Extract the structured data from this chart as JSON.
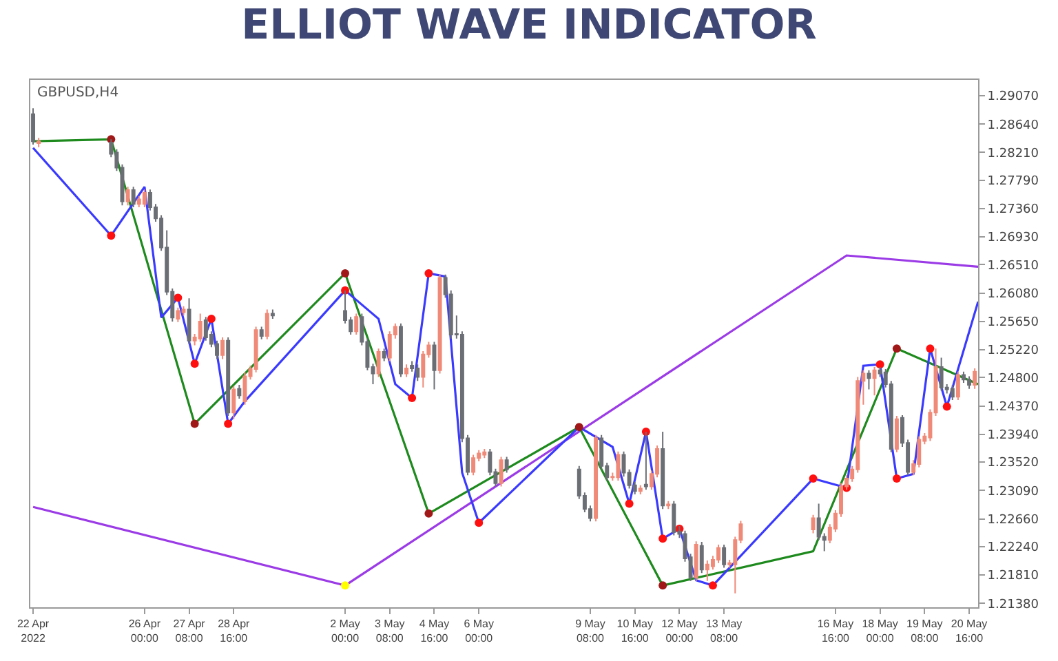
{
  "chart_data": {
    "type": "candlestick",
    "title": "ELLIOT WAVE INDICATOR",
    "annotations": [
      "GBPUSD,H4"
    ],
    "x": [
      "2022-04-22T16:00",
      "2022-04-22T20:00",
      "2022-04-25T00:00",
      "2022-04-25T04:00",
      "2022-04-25T08:00",
      "2022-04-25T12:00",
      "2022-04-25T16:00",
      "2022-04-25T20:00",
      "2022-04-26T00:00",
      "2022-04-26T04:00",
      "2022-04-26T08:00",
      "2022-04-26T12:00",
      "2022-04-26T16:00",
      "2022-04-26T20:00",
      "2022-04-27T00:00",
      "2022-04-27T04:00",
      "2022-04-27T08:00",
      "2022-04-27T12:00",
      "2022-04-27T16:00",
      "2022-04-27T20:00",
      "2022-04-28T00:00",
      "2022-04-28T04:00",
      "2022-04-28T08:00",
      "2022-04-28T12:00",
      "2022-04-28T16:00",
      "2022-04-28T20:00",
      "2022-04-29T00:00",
      "2022-04-29T04:00",
      "2022-04-29T08:00",
      "2022-04-29T12:00",
      "2022-04-29T16:00",
      "2022-04-29T20:00",
      "2022-05-02T00:00",
      "2022-05-02T04:00",
      "2022-05-02T08:00",
      "2022-05-02T12:00",
      "2022-05-02T16:00",
      "2022-05-02T20:00",
      "2022-05-03T00:00",
      "2022-05-03T04:00",
      "2022-05-03T08:00",
      "2022-05-03T12:00",
      "2022-05-03T16:00",
      "2022-05-03T20:00",
      "2022-05-04T00:00",
      "2022-05-04T04:00",
      "2022-05-04T08:00",
      "2022-05-04T12:00",
      "2022-05-04T16:00",
      "2022-05-04T20:00",
      "2022-05-05T00:00",
      "2022-05-05T04:00",
      "2022-05-05T08:00",
      "2022-05-05T12:00",
      "2022-05-05T16:00",
      "2022-05-05T20:00",
      "2022-05-06T00:00",
      "2022-05-06T04:00",
      "2022-05-06T08:00",
      "2022-05-06T12:00",
      "2022-05-06T16:00",
      "2022-05-06T20:00",
      "2022-05-09T00:00",
      "2022-05-09T04:00",
      "2022-05-09T08:00",
      "2022-05-09T12:00",
      "2022-05-09T16:00",
      "2022-05-09T20:00",
      "2022-05-10T00:00",
      "2022-05-10T04:00",
      "2022-05-10T08:00",
      "2022-05-10T12:00",
      "2022-05-10T16:00",
      "2022-05-10T20:00",
      "2022-05-11T00:00",
      "2022-05-11T04:00",
      "2022-05-11T08:00",
      "2022-05-11T12:00",
      "2022-05-11T16:00",
      "2022-05-11T20:00",
      "2022-05-12T00:00",
      "2022-05-12T04:00",
      "2022-05-12T08:00",
      "2022-05-12T12:00",
      "2022-05-12T16:00",
      "2022-05-12T20:00",
      "2022-05-13T00:00",
      "2022-05-13T04:00",
      "2022-05-13T08:00",
      "2022-05-13T12:00",
      "2022-05-13T16:00",
      "2022-05-13T20:00",
      "2022-05-16T00:00",
      "2022-05-16T04:00",
      "2022-05-16T08:00",
      "2022-05-16T12:00",
      "2022-05-16T16:00",
      "2022-05-16T20:00",
      "2022-05-17T00:00",
      "2022-05-17T04:00",
      "2022-05-17T08:00",
      "2022-05-17T12:00",
      "2022-05-17T16:00",
      "2022-05-17T20:00",
      "2022-05-18T00:00",
      "2022-05-18T04:00",
      "2022-05-18T08:00",
      "2022-05-18T12:00",
      "2022-05-18T16:00",
      "2022-05-18T20:00",
      "2022-05-19T00:00",
      "2022-05-19T04:00",
      "2022-05-19T08:00",
      "2022-05-19T12:00",
      "2022-05-19T16:00",
      "2022-05-19T20:00",
      "2022-05-20T00:00",
      "2022-05-20T04:00",
      "2022-05-20T08:00",
      "2022-05-20T12:00",
      "2022-05-20T16:00",
      "2022-05-20T20:00"
    ],
    "ohlc": [
      [
        1.2879,
        1.2888,
        1.2833,
        1.2838
      ],
      [
        1.2835,
        1.2843,
        1.2829,
        1.2838
      ],
      [
        1.2836,
        1.2841,
        1.2814,
        1.2819
      ],
      [
        1.2821,
        1.2826,
        1.2793,
        1.2798
      ],
      [
        1.2798,
        1.2803,
        1.2741,
        1.2747
      ],
      [
        1.2747,
        1.2769,
        1.2741,
        1.2764
      ],
      [
        1.2764,
        1.2769,
        1.2738,
        1.2743
      ],
      [
        1.2743,
        1.2755,
        1.2738,
        1.275
      ],
      [
        1.2743,
        1.2765,
        1.2738,
        1.276
      ],
      [
        1.276,
        1.2765,
        1.2733,
        1.2738
      ],
      [
        1.2738,
        1.2743,
        1.2716,
        1.2721
      ],
      [
        1.2721,
        1.2726,
        1.2672,
        1.2677
      ],
      [
        1.2677,
        1.2703,
        1.2605,
        1.261
      ],
      [
        1.261,
        1.2615,
        1.2565,
        1.2571
      ],
      [
        1.2569,
        1.2586,
        1.2564,
        1.2581
      ],
      [
        1.2579,
        1.2588,
        1.2574,
        1.2583
      ],
      [
        1.2583,
        1.26,
        1.2531,
        1.2536
      ],
      [
        1.2536,
        1.2546,
        1.2529,
        1.2541
      ],
      [
        1.2539,
        1.2577,
        1.2534,
        1.2565
      ],
      [
        1.2567,
        1.2572,
        1.2536,
        1.2541
      ],
      [
        1.2545,
        1.255,
        1.2526,
        1.2531
      ],
      [
        1.2531,
        1.2536,
        1.2508,
        1.2514
      ],
      [
        1.2514,
        1.2541,
        1.2508,
        1.2536
      ],
      [
        1.2536,
        1.2541,
        1.2422,
        1.2427
      ],
      [
        1.2427,
        1.2467,
        1.2417,
        1.2462
      ],
      [
        1.2463,
        1.2469,
        1.2448,
        1.2453
      ],
      [
        1.2444,
        1.2488,
        1.2439,
        1.2482
      ],
      [
        1.2482,
        1.2498,
        1.2477,
        1.2493
      ],
      [
        1.2493,
        1.2557,
        1.2488,
        1.2552
      ],
      [
        1.2552,
        1.2557,
        1.2538,
        1.2543
      ],
      [
        1.2543,
        1.2583,
        1.2538,
        1.2577
      ],
      [
        1.2577,
        1.2583,
        1.2569,
        1.2574
      ],
      [
        1.2581,
        1.2612,
        1.2562,
        1.2567
      ],
      [
        1.2567,
        1.2572,
        1.2545,
        1.255
      ],
      [
        1.255,
        1.2577,
        1.2545,
        1.2572
      ],
      [
        1.2572,
        1.2577,
        1.2529,
        1.2534
      ],
      [
        1.2534,
        1.2539,
        1.2491,
        1.2496
      ],
      [
        1.2496,
        1.2501,
        1.247,
        1.2486
      ],
      [
        1.2486,
        1.2524,
        1.2481,
        1.2519
      ],
      [
        1.2519,
        1.2524,
        1.2505,
        1.251
      ],
      [
        1.251,
        1.255,
        1.2505,
        1.2545
      ],
      [
        1.2545,
        1.2562,
        1.2539,
        1.2557
      ],
      [
        1.2557,
        1.2562,
        1.2481,
        1.2486
      ],
      [
        1.2486,
        1.25,
        1.2481,
        1.2494
      ],
      [
        1.2498,
        1.2505,
        1.2489,
        1.2494
      ],
      [
        1.2494,
        1.25,
        1.2475,
        1.2481
      ],
      [
        1.2481,
        1.252,
        1.2465,
        1.2515
      ],
      [
        1.2515,
        1.2534,
        1.251,
        1.2529
      ],
      [
        1.2529,
        1.2534,
        1.2462,
        1.2491
      ],
      [
        1.2491,
        1.2636,
        1.2486,
        1.2631
      ],
      [
        1.2631,
        1.2636,
        1.2601,
        1.2606
      ],
      [
        1.2606,
        1.2612,
        1.2539,
        1.2545
      ],
      [
        1.2546,
        1.2574,
        1.2539,
        1.2545
      ],
      [
        1.2545,
        1.255,
        1.2382,
        1.2388
      ],
      [
        1.2388,
        1.2393,
        1.2332,
        1.2337
      ],
      [
        1.2337,
        1.2363,
        1.2332,
        1.2358
      ],
      [
        1.2358,
        1.237,
        1.2353,
        1.2365
      ],
      [
        1.2363,
        1.2372,
        1.2358,
        1.2367
      ],
      [
        1.2367,
        1.2372,
        1.2332,
        1.2337
      ],
      [
        1.2337,
        1.2342,
        1.2315,
        1.232
      ],
      [
        1.232,
        1.236,
        1.2315,
        1.2355
      ],
      [
        1.2355,
        1.236,
        1.2336,
        1.2341
      ],
      [
        1.2341,
        1.2346,
        1.2296,
        1.2301
      ],
      [
        1.2301,
        1.2306,
        1.2276,
        1.2281
      ],
      [
        1.2281,
        1.2286,
        1.2262,
        1.2267
      ],
      [
        1.2267,
        1.2393,
        1.2262,
        1.2388
      ],
      [
        1.2388,
        1.2393,
        1.2341,
        1.2346
      ],
      [
        1.2346,
        1.2351,
        1.2324,
        1.2329
      ],
      [
        1.2329,
        1.2336,
        1.2324,
        1.233
      ],
      [
        1.2329,
        1.2368,
        1.2324,
        1.2363
      ],
      [
        1.2363,
        1.2368,
        1.233,
        1.2336
      ],
      [
        1.2336,
        1.2341,
        1.2312,
        1.2317
      ],
      [
        1.2317,
        1.2322,
        1.2303,
        1.2308
      ],
      [
        1.2308,
        1.2317,
        1.2303,
        1.2312
      ],
      [
        1.2318,
        1.2398,
        1.231,
        1.2315
      ],
      [
        1.2315,
        1.2339,
        1.231,
        1.2334
      ],
      [
        1.2334,
        1.2377,
        1.2329,
        1.2372
      ],
      [
        1.2372,
        1.2398,
        1.2281,
        1.2286
      ],
      [
        1.2286,
        1.2293,
        1.2281,
        1.2288
      ],
      [
        1.2288,
        1.2293,
        1.2241,
        1.2246
      ],
      [
        1.2247,
        1.2255,
        1.2237,
        1.2243
      ],
      [
        1.2243,
        1.2248,
        1.2201,
        1.2206
      ],
      [
        1.2208,
        1.2213,
        1.2172,
        1.2177
      ],
      [
        1.2177,
        1.2232,
        1.2172,
        1.2227
      ],
      [
        1.2225,
        1.2231,
        1.2184,
        1.2189
      ],
      [
        1.2189,
        1.2203,
        1.2172,
        1.2197
      ],
      [
        1.2194,
        1.221,
        1.2189,
        1.2204
      ],
      [
        1.2204,
        1.2227,
        1.2199,
        1.2222
      ],
      [
        1.2222,
        1.2227,
        1.2192,
        1.2197
      ],
      [
        1.2197,
        1.2204,
        1.2192,
        1.2199
      ],
      [
        1.2197,
        1.2239,
        1.2153,
        1.2234
      ],
      [
        1.2234,
        1.2263,
        1.2229,
        1.2258
      ],
      [
        1.225,
        1.2272,
        1.2244,
        1.2267
      ],
      [
        1.2267,
        1.2289,
        1.2234,
        1.2239
      ],
      [
        1.2239,
        1.2244,
        1.2217,
        1.2234
      ],
      [
        1.2234,
        1.2258,
        1.2229,
        1.2253
      ],
      [
        1.2251,
        1.2279,
        1.2246,
        1.2274
      ],
      [
        1.2274,
        1.232,
        1.2269,
        1.2315
      ],
      [
        1.2315,
        1.2332,
        1.231,
        1.2327
      ],
      [
        1.2327,
        1.2346,
        1.2322,
        1.2341
      ],
      [
        1.2341,
        1.2481,
        1.2336,
        1.2475
      ],
      [
        1.2475,
        1.2491,
        1.2439,
        1.2486
      ],
      [
        1.2486,
        1.2491,
        1.2462,
        1.2479
      ],
      [
        1.2479,
        1.2496,
        1.2453,
        1.2491
      ],
      [
        1.2491,
        1.2496,
        1.2481,
        1.2486
      ],
      [
        1.2488,
        1.2493,
        1.2465,
        1.247
      ],
      [
        1.247,
        1.2475,
        1.2367,
        1.2372
      ],
      [
        1.2372,
        1.2422,
        1.2367,
        1.2417
      ],
      [
        1.2419,
        1.2423,
        1.2375,
        1.2381
      ],
      [
        1.2381,
        1.2386,
        1.2332,
        1.2337
      ],
      [
        1.2337,
        1.2355,
        1.2332,
        1.2349
      ],
      [
        1.2349,
        1.2391,
        1.2344,
        1.2386
      ],
      [
        1.2384,
        1.2396,
        1.2379,
        1.2391
      ],
      [
        1.2389,
        1.2432,
        1.2384,
        1.2427
      ],
      [
        1.2427,
        1.2524,
        1.2422,
        1.2496
      ],
      [
        1.2496,
        1.251,
        1.246,
        1.2465
      ],
      [
        1.2465,
        1.247,
        1.2456,
        1.2462
      ],
      [
        1.2463,
        1.2469,
        1.2446,
        1.2451
      ],
      [
        1.2451,
        1.2489,
        1.2446,
        1.2484
      ],
      [
        1.2484,
        1.2489,
        1.2472,
        1.2477
      ],
      [
        1.2477,
        1.2482,
        1.2463,
        1.2469
      ],
      [
        1.2469,
        1.2494,
        1.2463,
        1.2489
      ]
    ],
    "colors": [
      "#6b6f75",
      "#f08a78",
      "#6b6f75",
      "#6b6f75",
      "#6b6f75",
      "#f08a78",
      "#6b6f75",
      "#f08a78",
      "#f08a78",
      "#6b6f75",
      "#6b6f75",
      "#6b6f75",
      "#6b6f75",
      "#6b6f75",
      "#f08a78",
      "#f08a78",
      "#6b6f75",
      "#f08a78",
      "#f08a78",
      "#6b6f75",
      "#6b6f75",
      "#6b6f75",
      "#f08a78",
      "#6b6f75",
      "#f08a78",
      "#6b6f75",
      "#f08a78",
      "#f08a78",
      "#f08a78",
      "#6b6f75",
      "#f08a78",
      "#6b6f75",
      "#6b6f75",
      "#6b6f75",
      "#f08a78",
      "#6b6f75",
      "#6b6f75",
      "#6b6f75",
      "#f08a78",
      "#6b6f75",
      "#f08a78",
      "#f08a78",
      "#6b6f75",
      "#f08a78",
      "#6b6f75",
      "#6b6f75",
      "#f08a78",
      "#f08a78",
      "#6b6f75",
      "#f08a78",
      "#6b6f75",
      "#6b6f75",
      "#6b6f75",
      "#6b6f75",
      "#6b6f75",
      "#f08a78",
      "#f08a78",
      "#f08a78",
      "#6b6f75",
      "#6b6f75",
      "#f08a78",
      "#6b6f75",
      "#6b6f75",
      "#6b6f75",
      "#6b6f75",
      "#f08a78",
      "#6b6f75",
      "#6b6f75",
      "#f08a78",
      "#f08a78",
      "#6b6f75",
      "#6b6f75",
      "#6b6f75",
      "#f08a78",
      "#6b6f75",
      "#f08a78",
      "#f08a78",
      "#6b6f75",
      "#f08a78",
      "#6b6f75",
      "#6b6f75",
      "#6b6f75",
      "#6b6f75",
      "#f08a78",
      "#6b6f75",
      "#f08a78",
      "#f08a78",
      "#f08a78",
      "#6b6f75",
      "#f08a78",
      "#f08a78",
      "#f08a78",
      "#f08a78",
      "#6b6f75",
      "#6b6f75",
      "#f08a78",
      "#f08a78",
      "#f08a78",
      "#f08a78",
      "#f08a78",
      "#f08a78",
      "#f08a78",
      "#6b6f75",
      "#f08a78",
      "#6b6f75",
      "#6b6f75",
      "#6b6f75",
      "#f08a78",
      "#6b6f75",
      "#6b6f75",
      "#f08a78",
      "#f08a78",
      "#f08a78",
      "#f08a78",
      "#f08a78",
      "#6b6f75",
      "#6b6f75",
      "#6b6f75",
      "#f08a78",
      "#6b6f75",
      "#6b6f75",
      "#f08a78"
    ],
    "series": [
      {
        "type": "line",
        "color": "#9b3be6",
        "x": [
          "2022-04-22T16:00",
          "2022-05-02T00:00",
          "2022-05-17T00:00",
          "2022-05-20T22:24"
        ],
        "values": [
          1.2284,
          1.2165,
          1.2665,
          1.2648
        ]
      },
      {
        "type": "line",
        "color": "#1e8a1e",
        "x": [
          "2022-04-22T16:00",
          "2022-04-25T00:00",
          "2022-04-27T12:00",
          "2022-05-02T00:00",
          "2022-05-04T12:00",
          "2022-05-09T00:00",
          "2022-05-11T12:00",
          "2022-05-16T00:00",
          "2022-05-18T12:00",
          "2022-05-20T22:24"
        ],
        "values": [
          1.2838,
          1.2841,
          1.241,
          1.2638,
          1.2274,
          1.2405,
          1.2165,
          1.2217,
          1.2524,
          1.247
        ]
      },
      {
        "type": "line",
        "color": "#3a3aff",
        "x": [
          "2022-04-22T16:00",
          "2022-04-25T00:00",
          "2022-04-26T00:00",
          "2022-04-26T12:00",
          "2022-04-27T00:00",
          "2022-04-27T12:00",
          "2022-04-28T00:00",
          "2022-04-28T12:00",
          "2022-04-29T00:00",
          "2022-05-02T00:00",
          "2022-05-03T00:00",
          "2022-05-03T12:00",
          "2022-05-04T00:00",
          "2022-05-04T12:00",
          "2022-05-05T00:00",
          "2022-05-05T12:00",
          "2022-05-06T00:00",
          "2022-05-09T00:00",
          "2022-05-10T00:00",
          "2022-05-10T12:00",
          "2022-05-11T00:00",
          "2022-05-11T12:00",
          "2022-05-12T00:00",
          "2022-05-12T12:00",
          "2022-05-13T00:00",
          "2022-05-16T00:00",
          "2022-05-17T00:00",
          "2022-05-17T12:00",
          "2022-05-18T00:00",
          "2022-05-18T12:00",
          "2022-05-19T00:00",
          "2022-05-19T12:00",
          "2022-05-20T00:00",
          "2022-05-20T22:24"
        ],
        "values": [
          1.2828,
          1.2695,
          1.2769,
          1.2571,
          1.2601,
          1.2501,
          1.2569,
          1.241,
          1.2444,
          1.2612,
          1.2569,
          1.247,
          1.2449,
          1.2638,
          1.2633,
          1.2336,
          1.226,
          1.2405,
          1.2375,
          1.2289,
          1.2398,
          1.2236,
          1.2251,
          1.2173,
          1.2165,
          1.2327,
          1.2313,
          1.2498,
          1.25,
          1.2327,
          1.2334,
          1.2524,
          1.2436,
          1.2595
        ]
      },
      {
        "type": "scatter",
        "marker": "circle",
        "color": "#ff1010",
        "x": [
          "2022-04-25T00:00",
          "2022-04-27T00:00",
          "2022-04-27T12:00",
          "2022-04-28T00:00",
          "2022-04-28T12:00",
          "2022-05-02T00:00",
          "2022-05-04T00:00",
          "2022-05-04T12:00",
          "2022-05-06T00:00",
          "2022-05-10T12:00",
          "2022-05-11T00:00",
          "2022-05-11T12:00",
          "2022-05-12T00:00",
          "2022-05-13T00:00",
          "2022-05-16T00:00",
          "2022-05-17T00:00",
          "2022-05-18T00:00",
          "2022-05-18T12:00",
          "2022-05-19T12:00",
          "2022-05-20T00:00"
        ],
        "values": [
          1.2695,
          1.2601,
          1.2501,
          1.2569,
          1.241,
          1.2612,
          1.2449,
          1.2638,
          1.226,
          1.2289,
          1.2398,
          1.2236,
          1.2251,
          1.2165,
          1.2327,
          1.2313,
          1.25,
          1.2327,
          1.2524,
          1.2436
        ]
      },
      {
        "type": "scatter",
        "marker": "circle",
        "color": "#a01818",
        "x": [
          "2022-04-25T00:00",
          "2022-04-27T12:00",
          "2022-05-02T00:00",
          "2022-05-04T12:00",
          "2022-05-09T00:00",
          "2022-05-11T12:00",
          "2022-05-18T12:00"
        ],
        "values": [
          1.2841,
          1.241,
          1.2638,
          1.2274,
          1.2405,
          1.2165,
          1.2524
        ]
      },
      {
        "type": "scatter",
        "marker": "circle",
        "color": "#ffff00",
        "x": [
          "2022-05-02T00:00"
        ],
        "values": [
          1.2165
        ]
      }
    ],
    "xlim": [
      "2022-04-22T14:00",
      "2022-05-20T22:24"
    ],
    "ylim": [
      1.2132,
      1.2931
    ],
    "xticks": [
      {
        "value": "2022-04-22T16:00",
        "label": "22 Apr 2022"
      },
      {
        "value": "2022-04-26T00:00",
        "label": "26 Apr 00:00"
      },
      {
        "value": "2022-04-27T08:00",
        "label": "27 Apr 08:00"
      },
      {
        "value": "2022-04-28T16:00",
        "label": "28 Apr 16:00"
      },
      {
        "value": "2022-05-02T00:00",
        "label": "2 May 00:00"
      },
      {
        "value": "2022-05-03T08:00",
        "label": "3 May 08:00"
      },
      {
        "value": "2022-05-04T16:00",
        "label": "4 May 16:00"
      },
      {
        "value": "2022-05-06T00:00",
        "label": "6 May 00:00"
      },
      {
        "value": "2022-05-09T08:00",
        "label": "9 May 08:00"
      },
      {
        "value": "2022-05-10T16:00",
        "label": "10 May 16:00"
      },
      {
        "value": "2022-05-12T00:00",
        "label": "12 May 00:00"
      },
      {
        "value": "2022-05-13T08:00",
        "label": "13 May 08:00"
      },
      {
        "value": "2022-05-16T16:00",
        "label": "16 May 16:00"
      },
      {
        "value": "2022-05-18T00:00",
        "label": "18 May 00:00"
      },
      {
        "value": "2022-05-19T08:00",
        "label": "19 May 08:00"
      },
      {
        "value": "2022-05-20T16:00",
        "label": "20 May 16:00"
      }
    ],
    "yticks": [
      {
        "value": 1.2907,
        "label": "1.29070"
      },
      {
        "value": 1.2864,
        "label": "1.28640"
      },
      {
        "value": 1.2821,
        "label": "1.28210"
      },
      {
        "value": 1.2779,
        "label": "1.27790"
      },
      {
        "value": 1.2736,
        "label": "1.27360"
      },
      {
        "value": 1.2693,
        "label": "1.26930"
      },
      {
        "value": 1.2651,
        "label": "1.26510"
      },
      {
        "value": 1.2608,
        "label": "1.26080"
      },
      {
        "value": 1.2565,
        "label": "1.25650"
      },
      {
        "value": 1.2522,
        "label": "1.25220"
      },
      {
        "value": 1.248,
        "label": "1.24800"
      },
      {
        "value": 1.2437,
        "label": "1.24370"
      },
      {
        "value": 1.2394,
        "label": "1.23940"
      },
      {
        "value": 1.2352,
        "label": "1.23520"
      },
      {
        "value": 1.2309,
        "label": "1.23090"
      },
      {
        "value": 1.2266,
        "label": "1.22660"
      },
      {
        "value": 1.2224,
        "label": "1.22240"
      },
      {
        "value": 1.2181,
        "label": "1.21810"
      },
      {
        "value": 1.2138,
        "label": "1.21380"
      }
    ],
    "grid": false
  }
}
